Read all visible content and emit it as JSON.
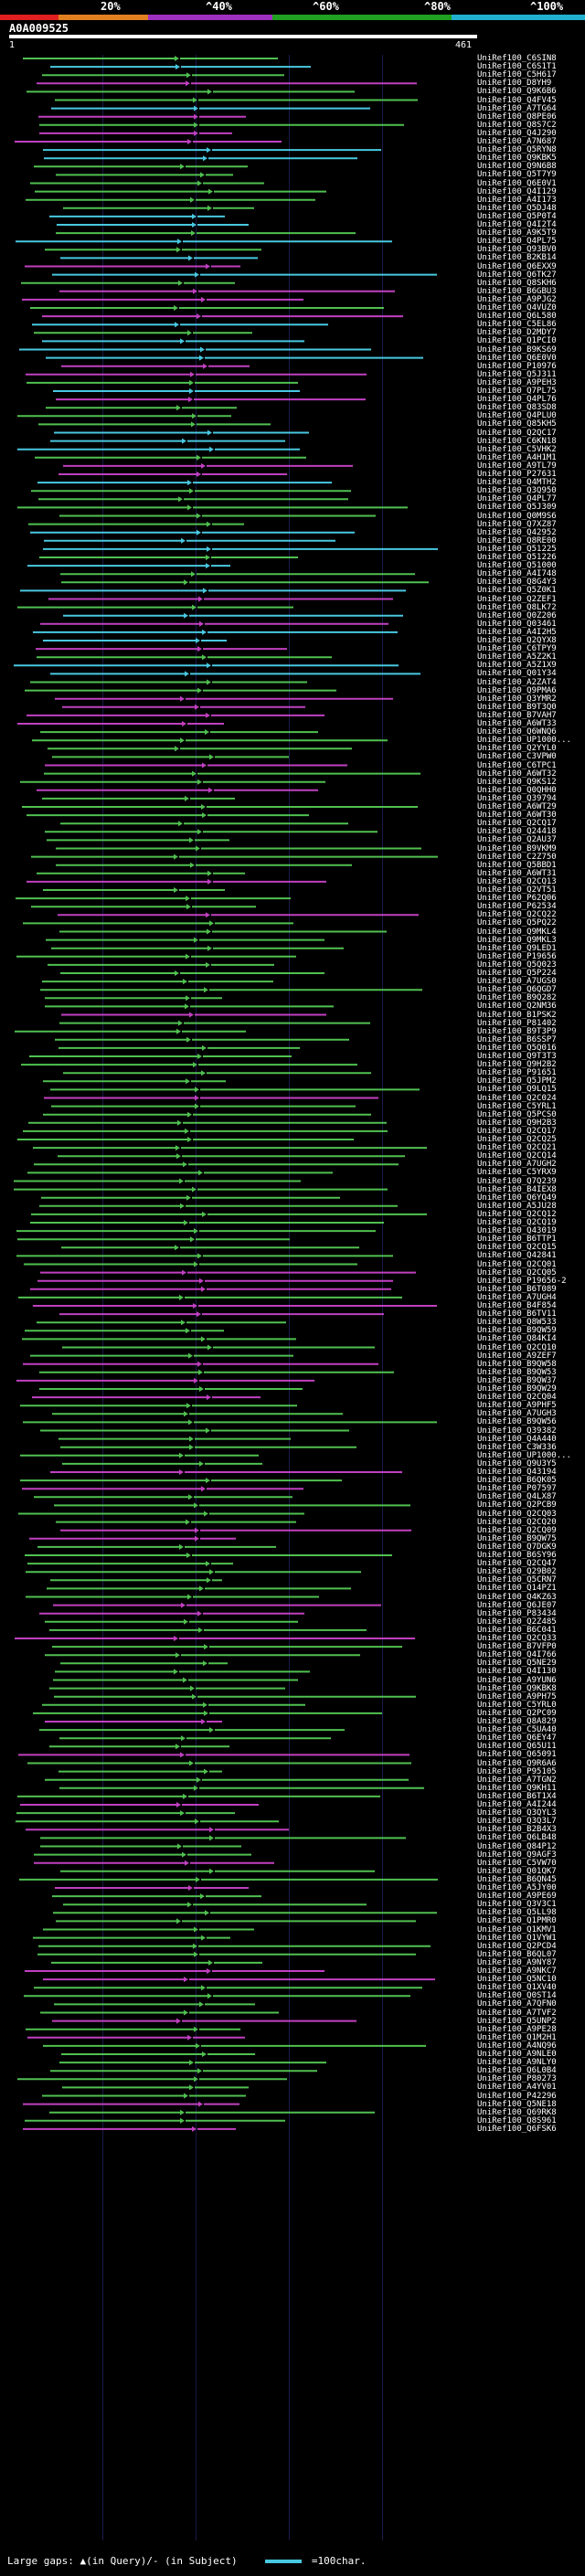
{
  "header": {
    "percent_scale": [
      "20%",
      "^40%",
      "^60%",
      "^80%",
      "^100%"
    ],
    "scale_colors": [
      "#e02020",
      "#e08020",
      "#a030c0",
      "#20a020",
      "#20b0d0"
    ],
    "query_id": "A0A009525",
    "ruler_start": "1",
    "ruler_end": "461"
  },
  "colors": {
    "high": "#48c8e0",
    "mid": "#50c050",
    "low": "#c040c0",
    "background": "#000000",
    "text": "#ffffff"
  },
  "hits": [
    "UniRef100_C6SIN8",
    "UniRef100_C6S1T1",
    "UniRef100_C5H617",
    "UniRef100_D8YH9",
    "UniRef100_Q9K6B6",
    "UniRef100_Q4FV45",
    "UniRef100_A7TG64",
    "UniRef100_Q8PE06",
    "UniRef100_Q8S7C2",
    "UniRef100_Q4J290",
    "UniRef100_A7N687",
    "UniRef100_Q5RYN8",
    "UniRef100_Q9KBK5",
    "UniRef100_Q9N6B8",
    "UniRef100_Q5T7Y9",
    "UniRef100_Q6E0V1",
    "UniRef100_Q4I129",
    "UniRef100_A4I173",
    "UniRef100_Q5DJ48",
    "UniRef100_Q5P0T4",
    "UniRef100_Q4I2T4",
    "UniRef100_A9K5T9",
    "UniRef100_Q4PL75",
    "UniRef100_Q93BV0",
    "UniRef100_B2KB14",
    "UniRef100_Q6EXX9",
    "UniRef100_Q6TK27",
    "UniRef100_Q8SKH6",
    "UniRef100_B6GBU3",
    "UniRef100_A9PJG2",
    "UniRef100_Q4VUZ0",
    "UniRef100_Q6L580",
    "UniRef100_C5EL86",
    "UniRef100_D2MDY7",
    "UniRef100_Q1PCI0",
    "UniRef100_B9KS69",
    "UniRef100_Q6E0V0",
    "UniRef100_P10976",
    "UniRef100_Q5J311",
    "UniRef100_A9PEH3",
    "UniRef100_Q7PL75",
    "UniRef100_Q4PL76",
    "UniRef100_Q83SD8",
    "UniRef100_Q4PLU0",
    "UniRef100_Q85KH5",
    "UniRef100_Q2QC17",
    "UniRef100_C6KN18",
    "UniRef100_C5VHK2",
    "UniRef100_A4H1M1",
    "UniRef100_A9TL79",
    "UniRef100_P27631",
    "UniRef100_Q4MTH2",
    "UniRef100_Q3Q950",
    "UniRef100_Q4PL77",
    "UniRef100_Q5J309",
    "UniRef100_Q0M9S6",
    "UniRef100_Q7XZ87",
    "UniRef100_Q42952",
    "UniRef100_Q8RE00",
    "UniRef100_Q51225",
    "UniRef100_Q51226",
    "UniRef100_Q51000",
    "UniRef100_A4I748",
    "UniRef100_Q8G4Y3",
    "UniRef100_Q5Z0K1",
    "UniRef100_Q2ZEF1",
    "UniRef100_Q8LK72",
    "UniRef100_Q0Z206",
    "UniRef100_Q03461",
    "UniRef100_A4I2H5",
    "UniRef100_Q2QYX8",
    "UniRef100_C6TPY9",
    "UniRef100_A5Z2K1",
    "UniRef100_A5Z1X9",
    "UniRef100_Q01Y34",
    "UniRef100_A2ZAT4",
    "UniRef100_Q9PMA6",
    "UniRef100_Q3YMR2",
    "UniRef100_B9T3Q0",
    "UniRef100_B7VAH7",
    "UniRef100_A6WT33",
    "UniRef100_Q6WNQ6",
    "UniRef100_UP1000...",
    "UniRef100_Q2YYL0",
    "UniRef100_C3VPW0",
    "UniRef100_C6TPC1",
    "UniRef100_A6WT32",
    "UniRef100_Q9KS12",
    "UniRef100_Q0QHH0",
    "UniRef100_Q39794",
    "UniRef100_A6WT29",
    "UniRef100_A6WT30",
    "UniRef100_Q2CQ17",
    "UniRef100_Q24418",
    "UniRef100_Q2AU37",
    "UniRef100_B9VKM9",
    "UniRef100_C2Z750",
    "UniRef100_Q5BBD1",
    "UniRef100_A6WT31",
    "UniRef100_Q2CQ13",
    "UniRef100_Q2VT51",
    "UniRef100_P62Q06",
    "UniRef100_P62534",
    "UniRef100_Q2CQ22",
    "UniRef100_Q5PQ22",
    "UniRef100_Q9MKL4",
    "UniRef100_Q9MKL3",
    "UniRef100_Q9LED1",
    "UniRef100_P19656",
    "UniRef100_Q5Q023",
    "UniRef100_Q5P224",
    "UniRef100_A7UGS0",
    "UniRef100_Q6QGD7",
    "UniRef100_B9Q282",
    "UniRef100_Q2NM36",
    "UniRef100_B1PSK2",
    "UniRef100_P81402",
    "UniRef100_B9T3P9",
    "UniRef100_B6SSP7",
    "UniRef100_Q5Q016",
    "UniRef100_Q9T3T3",
    "UniRef100_Q9H2B2",
    "UniRef100_P91651",
    "UniRef100_Q5JPM2",
    "UniRef100_Q9LQ15",
    "UniRef100_Q2C024",
    "UniRef100_C5YRL1",
    "UniRef100_Q5PCS0",
    "UniRef100_Q9H2B3",
    "UniRef100_Q2CQ17",
    "UniRef100_Q2CQ25",
    "UniRef100_Q2CQ21",
    "UniRef100_Q2CQ14",
    "UniRef100_A7UGH2",
    "UniRef100_C5YRX9",
    "UniRef100_Q7Q239",
    "UniRef100_B4IEX8",
    "UniRef100_Q6YQ49",
    "UniRef100_A5JU28",
    "UniRef100_Q2CQ12",
    "UniRef100_Q2CQ19",
    "UniRef100_Q43019",
    "UniRef100_B6TTP1",
    "UniRef100_Q2CQ15",
    "UniRef100_Q42841",
    "UniRef100_Q2CQ01",
    "UniRef100_Q2CQ05",
    "UniRef100_P19656-2",
    "UniRef100_B6T089",
    "UniRef100_A7UGH4",
    "UniRef100_B4F854",
    "UniRef100_B6TV11",
    "UniRef100_Q8W533",
    "UniRef100_B9QW59",
    "UniRef100_Q84KI4",
    "UniRef100_Q2CQ10",
    "UniRef100_A9ZEF7",
    "UniRef100_B9QW58",
    "UniRef100_B9QW53",
    "UniRef100_B9QW37",
    "UniRef100_B9QW29",
    "UniRef100_Q2CQ04",
    "UniRef100_A9PHF5",
    "UniRef100_A7UGH3",
    "UniRef100_B9QW56",
    "UniRef100_Q39382",
    "UniRef100_Q4A440",
    "UniRef100_C3W336",
    "UniRef100_UP1000...",
    "UniRef100_Q9U3Y5",
    "UniRef100_Q43194",
    "UniRef100_B6QK05",
    "UniRef100_P07597",
    "UniRef100_Q4LX87",
    "UniRef100_Q2PCB9",
    "UniRef100_Q2CQ03",
    "UniRef100_Q2CQ20",
    "UniRef100_Q2CQ09",
    "UniRef100_B9QW75",
    "UniRef100_Q7DGK9",
    "UniRef100_B6SY96",
    "UniRef100_Q2CQ47",
    "UniRef100_Q29B02",
    "UniRef100_Q5CRN7",
    "UniRef100_Q14PZ1",
    "UniRef100_Q4KZ63",
    "UniRef100_Q6JE07",
    "UniRef100_P83434",
    "UniRef100_Q2Z485",
    "UniRef100_B6C041",
    "UniRef100_Q2CQ33",
    "UniRef100_B7VFP0",
    "UniRef100_Q4I766",
    "UniRef100_Q5NE29",
    "UniRef100_Q4I130",
    "UniRef100_A9YUN6",
    "UniRef100_Q9KBK8",
    "UniRef100_A9PH75",
    "UniRef100_C5YRL0",
    "UniRef100_Q2PC09",
    "UniRef100_Q8A829",
    "UniRef100_C5UA40",
    "UniRef100_Q6EY47",
    "UniRef100_Q65U11",
    "UniRef100_Q65091",
    "UniRef100_Q9R6A6",
    "UniRef100_P95105",
    "UniRef100_A7TGN2",
    "UniRef100_Q9KH11",
    "UniRef100_B6T1X4",
    "UniRef100_A4I244",
    "UniRef100_Q3QYL3",
    "UniRef100_Q3Q3L7",
    "UniRef100_B2B4X3",
    "UniRef100_Q6LB48",
    "UniRef100_Q84P12",
    "UniRef100_Q9AGF3",
    "UniRef100_C5VW70",
    "UniRef100_Q01QK7",
    "UniRef100_B6QN45",
    "UniRef100_A5JY00",
    "UniRef100_A9PE69",
    "UniRef100_Q3V3C1",
    "UniRef100_Q5LL98",
    "UniRef100_Q1PMR0",
    "UniRef100_Q1KMV1",
    "UniRef100_Q1VYW1",
    "UniRef100_Q2PCD4",
    "UniRef100_B6QL07",
    "UniRef100_A9NY87",
    "UniRef100_A9NKC7",
    "UniRef100_Q5NC10",
    "UniRef100_Q1XV40",
    "UniRef100_Q0ST14",
    "UniRef100_A7QFN0",
    "UniRef100_A7TVF2",
    "UniRef100_Q5UNP2",
    "UniRef100_A9PE28",
    "UniRef100_Q1M2H1",
    "UniRef100_A4NQ96",
    "UniRef100_A9NLE0",
    "UniRef100_A9NLY0",
    "UniRef100_Q6L0B4",
    "UniRef100_P80273",
    "UniRef100_A4YV01",
    "UniRef100_P42296",
    "UniRef100_Q5NE18",
    "UniRef100_Q69RK8",
    "UniRef100_Q8S961",
    "UniRef100_Q6FSK6"
  ],
  "footer": {
    "text": "Large gaps: ▲(in Query)/- (in Subject)",
    "legend_label": "=100char."
  }
}
